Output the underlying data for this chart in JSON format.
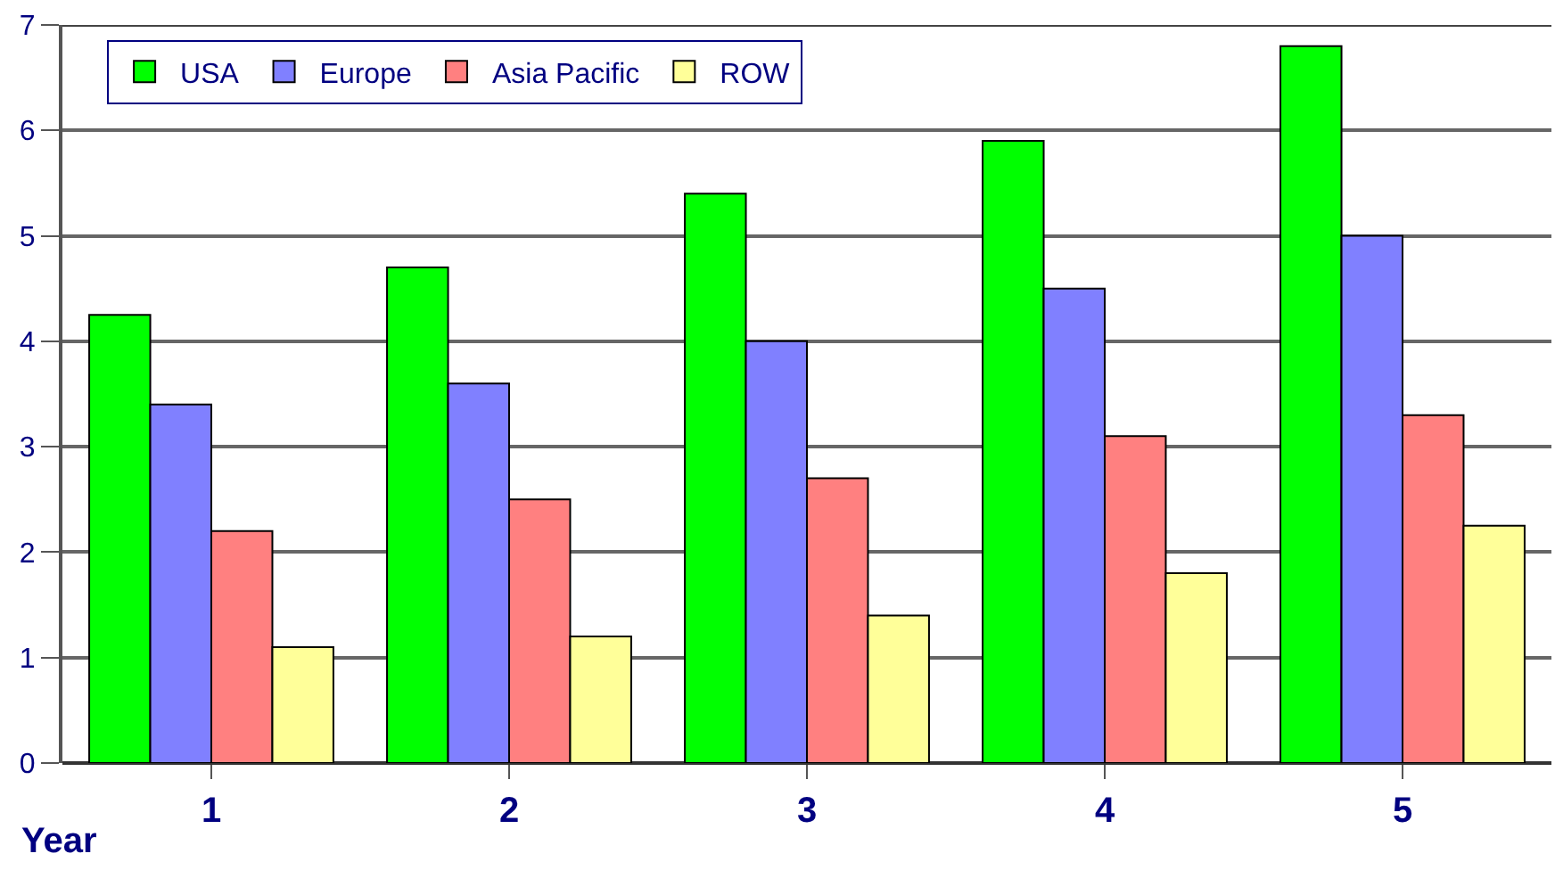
{
  "chart_data": {
    "type": "bar",
    "xlabel": "Year",
    "categories": [
      "1",
      "2",
      "3",
      "4",
      "5"
    ],
    "series": [
      {
        "name": "USA",
        "color": "#00ff00",
        "values": [
          4.25,
          4.7,
          5.4,
          5.9,
          6.8
        ]
      },
      {
        "name": "Europe",
        "color": "#8080ff",
        "values": [
          3.4,
          3.6,
          4.0,
          4.5,
          5.0
        ]
      },
      {
        "name": "Asia Pacific",
        "color": "#ff8080",
        "values": [
          2.2,
          2.5,
          2.7,
          3.1,
          3.3
        ]
      },
      {
        "name": "ROW",
        "color": "#ffff99",
        "values": [
          1.1,
          1.2,
          1.4,
          1.8,
          2.25
        ]
      }
    ],
    "ylim": [
      0,
      7
    ],
    "yticks": [
      0,
      1,
      2,
      3,
      4,
      5,
      6,
      7
    ],
    "grid": "y",
    "legend": "top left"
  }
}
